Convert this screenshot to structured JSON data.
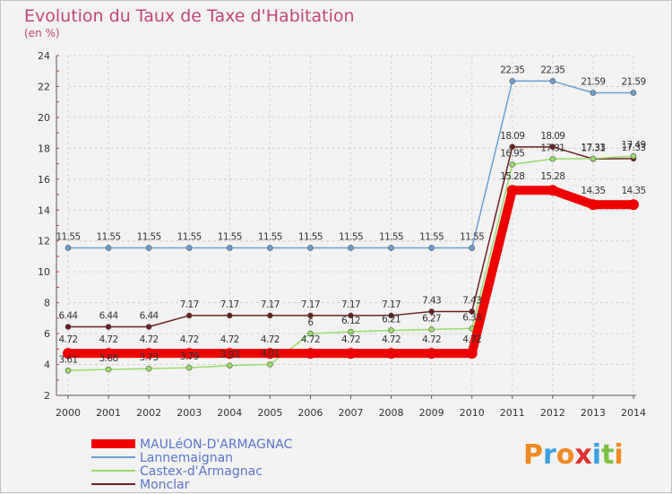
{
  "chart_data": {
    "type": "line",
    "title": "Evolution du Taux de Taxe d'Habitation",
    "subtitle": "(en %)",
    "x": [
      "2000",
      "2001",
      "2002",
      "2003",
      "2004",
      "2005",
      "2006",
      "2007",
      "2008",
      "2009",
      "2010",
      "2011",
      "2012",
      "2013",
      "2014"
    ],
    "ylim": [
      2,
      24
    ],
    "yticks": [
      2,
      4,
      6,
      8,
      10,
      12,
      14,
      16,
      18,
      20,
      22,
      24
    ],
    "grid": true,
    "legend_position": "bottom-left",
    "series": [
      {
        "name": "MAULéON-D'ARMAGNAC",
        "color": "#ee0000",
        "values": [
          4.72,
          4.72,
          4.72,
          4.72,
          4.72,
          4.72,
          4.72,
          4.72,
          4.72,
          4.72,
          4.72,
          15.28,
          15.28,
          14.35,
          14.35
        ]
      },
      {
        "name": "Lannemaignan",
        "color": "#6a9fd4",
        "values": [
          11.55,
          11.55,
          11.55,
          11.55,
          11.55,
          11.55,
          11.55,
          11.55,
          11.55,
          11.55,
          11.55,
          22.35,
          22.35,
          21.59,
          21.59
        ]
      },
      {
        "name": "Castex-d'Armagnac",
        "color": "#99dd66",
        "values": [
          3.61,
          3.68,
          3.73,
          3.79,
          3.93,
          4.01,
          6,
          6.12,
          6.21,
          6.27,
          6.33,
          16.95,
          17.31,
          17.33,
          17.49
        ]
      },
      {
        "name": "Monclar",
        "color": "#6b2020",
        "values": [
          6.44,
          6.44,
          6.44,
          7.17,
          7.17,
          7.17,
          7.17,
          7.17,
          7.17,
          7.43,
          7.43,
          18.09,
          18.09,
          17.31,
          17.33
        ]
      }
    ]
  },
  "brand": {
    "logo_text": "Proxiti",
    "logo_colors": [
      "#f08a24",
      "#3ca0e0",
      "#f08a24",
      "#e03030",
      "#3ca0e0",
      "#7cc242",
      "#f08a24"
    ]
  }
}
